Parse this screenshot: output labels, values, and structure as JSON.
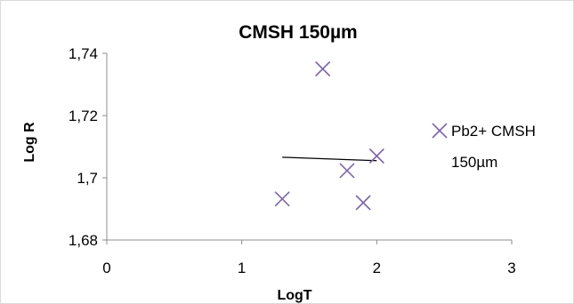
{
  "chart_data": {
    "type": "scatter",
    "title": "CMSH 150µm",
    "xlabel": "LogT",
    "ylabel": "Log R",
    "xlim": [
      0,
      3
    ],
    "ylim": [
      1.68,
      1.74
    ],
    "x_ticks": [
      "0",
      "1",
      "2",
      "3"
    ],
    "y_ticks": [
      "1,68",
      "1,7",
      "1,72",
      "1,74"
    ],
    "grid": false,
    "legend_position": "right",
    "series": [
      {
        "name": "Pb2+ CMSH 150µm",
        "marker": "x",
        "color": "#7f66a8",
        "points": [
          {
            "x": 1.3,
            "y": 1.6932
          },
          {
            "x": 1.6,
            "y": 1.735
          },
          {
            "x": 1.78,
            "y": 1.7023
          },
          {
            "x": 1.9,
            "y": 1.692
          },
          {
            "x": 2.0,
            "y": 1.707
          }
        ]
      }
    ],
    "trendline": {
      "color": "#000000",
      "points": [
        {
          "x": 1.3,
          "y": 1.7066
        },
        {
          "x": 2.0,
          "y": 1.7055
        }
      ]
    },
    "legend": {
      "line1": "Pb2+ CMSH",
      "line2": "150µm"
    }
  }
}
